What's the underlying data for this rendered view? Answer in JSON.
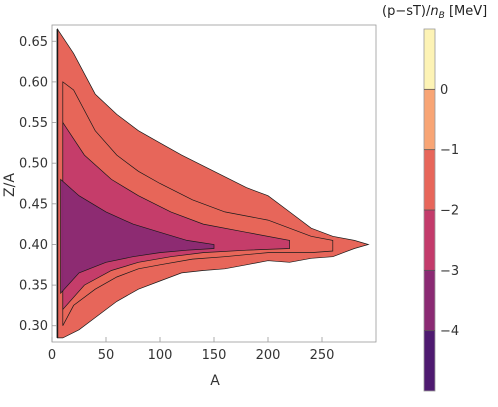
{
  "chart_data": {
    "type": "heatmap",
    "subtype": "contour",
    "xlabel": "A",
    "ylabel": "Z/A",
    "xlim": [
      0,
      300
    ],
    "ylim": [
      0.28,
      0.67
    ],
    "x_ticks": [
      0,
      50,
      100,
      150,
      200,
      250
    ],
    "y_ticks": [
      0.3,
      0.35,
      0.4,
      0.45,
      0.5,
      0.55,
      0.6,
      0.65
    ],
    "x_tick_labels": [
      "0",
      "50",
      "100",
      "150",
      "200",
      "250"
    ],
    "y_tick_labels": [
      "0.30",
      "0.35",
      "0.40",
      "0.45",
      "0.50",
      "0.55",
      "0.60",
      "0.65"
    ],
    "region_upper": [
      [
        5,
        0.665
      ],
      [
        10,
        0.655
      ],
      [
        20,
        0.635
      ],
      [
        40,
        0.585
      ],
      [
        60,
        0.56
      ],
      [
        80,
        0.54
      ],
      [
        100,
        0.525
      ],
      [
        120,
        0.51
      ],
      [
        150,
        0.49
      ],
      [
        180,
        0.47
      ],
      [
        200,
        0.46
      ],
      [
        220,
        0.44
      ],
      [
        240,
        0.42
      ],
      [
        260,
        0.41
      ],
      [
        280,
        0.405
      ],
      [
        293,
        0.4
      ]
    ],
    "region_lower": [
      [
        293,
        0.4
      ],
      [
        280,
        0.395
      ],
      [
        270,
        0.39
      ],
      [
        260,
        0.385
      ],
      [
        240,
        0.383
      ],
      [
        220,
        0.378
      ],
      [
        200,
        0.38
      ],
      [
        180,
        0.375
      ],
      [
        160,
        0.37
      ],
      [
        140,
        0.368
      ],
      [
        120,
        0.365
      ],
      [
        100,
        0.355
      ],
      [
        80,
        0.345
      ],
      [
        60,
        0.33
      ],
      [
        40,
        0.31
      ],
      [
        25,
        0.295
      ],
      [
        10,
        0.285
      ],
      [
        5,
        0.285
      ]
    ],
    "bands": [
      {
        "index": 3,
        "upper": [
          [
            10,
            0.6
          ],
          [
            20,
            0.59
          ],
          [
            40,
            0.54
          ],
          [
            60,
            0.51
          ],
          [
            80,
            0.49
          ],
          [
            100,
            0.475
          ],
          [
            130,
            0.455
          ],
          [
            160,
            0.44
          ],
          [
            200,
            0.43
          ],
          [
            240,
            0.41
          ],
          [
            260,
            0.405
          ]
        ],
        "lower": [
          [
            260,
            0.392
          ],
          [
            240,
            0.39
          ],
          [
            200,
            0.39
          ],
          [
            160,
            0.385
          ],
          [
            130,
            0.382
          ],
          [
            100,
            0.375
          ],
          [
            80,
            0.37
          ],
          [
            60,
            0.36
          ],
          [
            40,
            0.345
          ],
          [
            20,
            0.325
          ],
          [
            10,
            0.3
          ]
        ]
      },
      {
        "index": 2,
        "upper": [
          [
            10,
            0.55
          ],
          [
            30,
            0.51
          ],
          [
            55,
            0.48
          ],
          [
            80,
            0.46
          ],
          [
            110,
            0.44
          ],
          [
            140,
            0.425
          ],
          [
            180,
            0.415
          ],
          [
            220,
            0.405
          ]
        ],
        "lower": [
          [
            220,
            0.395
          ],
          [
            180,
            0.393
          ],
          [
            140,
            0.39
          ],
          [
            110,
            0.385
          ],
          [
            80,
            0.378
          ],
          [
            55,
            0.368
          ],
          [
            30,
            0.35
          ],
          [
            10,
            0.32
          ]
        ]
      },
      {
        "index": 1,
        "upper": [
          [
            8,
            0.48
          ],
          [
            25,
            0.46
          ],
          [
            50,
            0.44
          ],
          [
            75,
            0.425
          ],
          [
            100,
            0.415
          ],
          [
            125,
            0.405
          ],
          [
            150,
            0.4
          ]
        ],
        "lower": [
          [
            150,
            0.395
          ],
          [
            125,
            0.393
          ],
          [
            100,
            0.39
          ],
          [
            75,
            0.385
          ],
          [
            50,
            0.378
          ],
          [
            25,
            0.365
          ],
          [
            8,
            0.34
          ]
        ]
      }
    ],
    "colorbar": {
      "title": "(p−sT)/n_B [MeV]",
      "title_main": "(p−sT)/",
      "title_sym": "n",
      "title_sub": "B",
      "title_unit": " [MeV]",
      "range": [
        -5,
        1
      ],
      "ticks": [
        -4,
        -3,
        -2,
        -1,
        0
      ],
      "tick_labels": [
        "−4",
        "−3",
        "−2",
        "−1",
        "0"
      ],
      "colors": [
        "#4e1a70",
        "#8a2a73",
        "#c33b6b",
        "#e7665a",
        "#f8a575",
        "#fdf3b5"
      ]
    }
  }
}
